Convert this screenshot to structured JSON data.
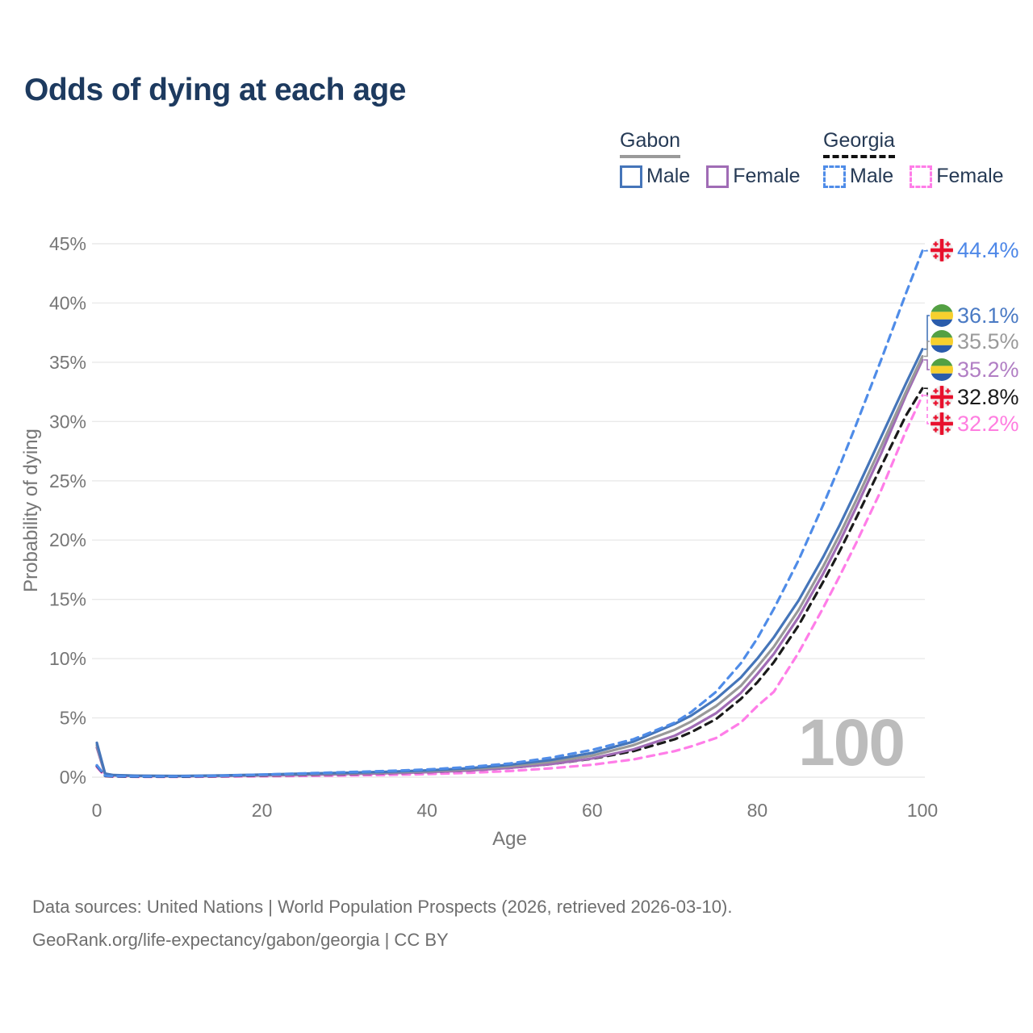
{
  "title": "Odds of dying at each age",
  "legend": {
    "gabon": {
      "title": "Gabon",
      "male": "Male",
      "female": "Female"
    },
    "georgia": {
      "title": "Georgia",
      "male": "Male",
      "female": "Female"
    }
  },
  "watermark": "100",
  "footer": {
    "line1": "Data sources: United Nations | World Population Prospects (2026, retrieved 2026-03-10).",
    "line2": "GeoRank.org/life-expectancy/gabon/georgia | CC BY"
  },
  "colors": {
    "title_text": "#1d3a5f",
    "legend_text": "#263a55",
    "axis_text": "#767676",
    "gridline": "#e9e9e9",
    "watermark": "#bcbcbc",
    "gabon_underline": "#9a9a9a",
    "georgia_underline": "#111111"
  },
  "chart_data": {
    "type": "line",
    "title": "Odds of dying at each age",
    "xlabel": "Age",
    "ylabel": "Probability of dying",
    "xlim": [
      0,
      100
    ],
    "ylim": [
      0,
      45
    ],
    "x_ticks": [
      0,
      20,
      40,
      60,
      80,
      100
    ],
    "y_ticks": [
      0,
      5,
      10,
      15,
      20,
      25,
      30,
      35,
      40,
      45
    ],
    "y_tick_suffix": "%",
    "grid": "horizontal",
    "legend_position": "top-right",
    "corner_age_counter": "100",
    "series": [
      {
        "name": "Georgia Male",
        "country": "Georgia",
        "sex": "Male",
        "style": "dashed",
        "color": "#4f8ce8",
        "label_color": "#4d87e8",
        "flag": "georgia",
        "end_label": "44.4%",
        "end_value": 44.4,
        "points": [
          [
            0,
            1.0
          ],
          [
            1,
            0.12
          ],
          [
            2,
            0.08
          ],
          [
            5,
            0.06
          ],
          [
            10,
            0.06
          ],
          [
            15,
            0.12
          ],
          [
            20,
            0.22
          ],
          [
            25,
            0.32
          ],
          [
            30,
            0.42
          ],
          [
            35,
            0.52
          ],
          [
            40,
            0.65
          ],
          [
            45,
            0.85
          ],
          [
            50,
            1.15
          ],
          [
            55,
            1.65
          ],
          [
            60,
            2.3
          ],
          [
            65,
            3.2
          ],
          [
            70,
            4.6
          ],
          [
            72,
            5.5
          ],
          [
            75,
            7.2
          ],
          [
            78,
            9.6
          ],
          [
            80,
            11.7
          ],
          [
            82,
            14.2
          ],
          [
            85,
            18.3
          ],
          [
            88,
            23.0
          ],
          [
            90,
            26.3
          ],
          [
            92,
            29.8
          ],
          [
            95,
            35.2
          ],
          [
            98,
            40.8
          ],
          [
            100,
            44.4
          ]
        ]
      },
      {
        "name": "Gabon Male",
        "country": "Gabon",
        "sex": "Male",
        "style": "solid",
        "color": "#4575b9",
        "label_color": "#4a7ac4",
        "flag": "gabon",
        "end_label": "36.1%",
        "end_value": 36.1,
        "points": [
          [
            0,
            2.9
          ],
          [
            1,
            0.3
          ],
          [
            2,
            0.18
          ],
          [
            5,
            0.12
          ],
          [
            10,
            0.1
          ],
          [
            15,
            0.14
          ],
          [
            20,
            0.22
          ],
          [
            25,
            0.3
          ],
          [
            30,
            0.37
          ],
          [
            35,
            0.45
          ],
          [
            40,
            0.57
          ],
          [
            45,
            0.75
          ],
          [
            50,
            1.05
          ],
          [
            55,
            1.45
          ],
          [
            60,
            2.05
          ],
          [
            65,
            3.0
          ],
          [
            70,
            4.5
          ],
          [
            72,
            5.2
          ],
          [
            75,
            6.6
          ],
          [
            78,
            8.4
          ],
          [
            80,
            10.0
          ],
          [
            82,
            11.8
          ],
          [
            85,
            14.9
          ],
          [
            88,
            18.6
          ],
          [
            90,
            21.3
          ],
          [
            92,
            24.2
          ],
          [
            95,
            28.7
          ],
          [
            98,
            33.2
          ],
          [
            100,
            36.1
          ]
        ]
      },
      {
        "name": "Gabon Both sexes",
        "country": "Gabon",
        "sex": "Both",
        "style": "solid",
        "color": "#999999",
        "label_color": "#9a9a9a",
        "flag": "gabon",
        "end_label": "35.5%",
        "end_value": 35.5,
        "points": [
          [
            0,
            2.7
          ],
          [
            1,
            0.27
          ],
          [
            2,
            0.16
          ],
          [
            5,
            0.11
          ],
          [
            10,
            0.09
          ],
          [
            15,
            0.12
          ],
          [
            20,
            0.19
          ],
          [
            25,
            0.26
          ],
          [
            30,
            0.32
          ],
          [
            35,
            0.4
          ],
          [
            40,
            0.5
          ],
          [
            45,
            0.66
          ],
          [
            50,
            0.92
          ],
          [
            55,
            1.28
          ],
          [
            60,
            1.82
          ],
          [
            65,
            2.7
          ],
          [
            70,
            4.0
          ],
          [
            72,
            4.7
          ],
          [
            75,
            6.0
          ],
          [
            78,
            7.7
          ],
          [
            80,
            9.3
          ],
          [
            82,
            11.0
          ],
          [
            85,
            14.1
          ],
          [
            88,
            17.8
          ],
          [
            90,
            20.5
          ],
          [
            92,
            23.4
          ],
          [
            95,
            27.9
          ],
          [
            98,
            32.5
          ],
          [
            100,
            35.5
          ]
        ]
      },
      {
        "name": "Gabon Female",
        "country": "Gabon",
        "sex": "Female",
        "style": "solid",
        "color": "#a06cb5",
        "label_color": "#b17ec4",
        "flag": "gabon",
        "end_label": "35.2%",
        "end_value": 35.2,
        "points": [
          [
            0,
            2.5
          ],
          [
            1,
            0.24
          ],
          [
            2,
            0.14
          ],
          [
            5,
            0.1
          ],
          [
            10,
            0.08
          ],
          [
            15,
            0.1
          ],
          [
            20,
            0.15
          ],
          [
            25,
            0.2
          ],
          [
            30,
            0.26
          ],
          [
            35,
            0.33
          ],
          [
            40,
            0.42
          ],
          [
            45,
            0.56
          ],
          [
            50,
            0.78
          ],
          [
            55,
            1.1
          ],
          [
            60,
            1.58
          ],
          [
            65,
            2.35
          ],
          [
            70,
            3.5
          ],
          [
            72,
            4.2
          ],
          [
            75,
            5.4
          ],
          [
            78,
            7.1
          ],
          [
            80,
            8.7
          ],
          [
            82,
            10.4
          ],
          [
            85,
            13.5
          ],
          [
            88,
            17.2
          ],
          [
            90,
            19.9
          ],
          [
            92,
            22.8
          ],
          [
            95,
            27.3
          ],
          [
            98,
            32.2
          ],
          [
            100,
            35.2
          ]
        ]
      },
      {
        "name": "Georgia Both sexes",
        "country": "Georgia",
        "sex": "Both",
        "style": "dashed",
        "color": "#1a1a1a",
        "label_color": "#1a1a1a",
        "flag": "georgia",
        "end_label": "32.8%",
        "end_value": 32.8,
        "points": [
          [
            0,
            0.95
          ],
          [
            1,
            0.1
          ],
          [
            2,
            0.06
          ],
          [
            5,
            0.04
          ],
          [
            10,
            0.04
          ],
          [
            15,
            0.08
          ],
          [
            20,
            0.13
          ],
          [
            25,
            0.18
          ],
          [
            30,
            0.24
          ],
          [
            35,
            0.32
          ],
          [
            40,
            0.42
          ],
          [
            45,
            0.56
          ],
          [
            50,
            0.78
          ],
          [
            55,
            1.1
          ],
          [
            60,
            1.55
          ],
          [
            65,
            2.2
          ],
          [
            70,
            3.2
          ],
          [
            72,
            3.8
          ],
          [
            75,
            4.9
          ],
          [
            78,
            6.6
          ],
          [
            80,
            8.0
          ],
          [
            82,
            9.7
          ],
          [
            85,
            12.8
          ],
          [
            88,
            16.5
          ],
          [
            90,
            19.1
          ],
          [
            92,
            21.9
          ],
          [
            95,
            26.2
          ],
          [
            98,
            30.5
          ],
          [
            100,
            32.8
          ]
        ]
      },
      {
        "name": "Georgia Female",
        "country": "Georgia",
        "sex": "Female",
        "style": "dashed",
        "color": "#ff7de8",
        "label_color": "#ff7de0",
        "flag": "georgia",
        "end_label": "32.2%",
        "end_value": 32.2,
        "points": [
          [
            0,
            0.85
          ],
          [
            1,
            0.08
          ],
          [
            2,
            0.05
          ],
          [
            5,
            0.03
          ],
          [
            10,
            0.03
          ],
          [
            15,
            0.05
          ],
          [
            20,
            0.08
          ],
          [
            25,
            0.11
          ],
          [
            30,
            0.14
          ],
          [
            35,
            0.19
          ],
          [
            40,
            0.26
          ],
          [
            45,
            0.36
          ],
          [
            50,
            0.52
          ],
          [
            55,
            0.75
          ],
          [
            60,
            1.05
          ],
          [
            65,
            1.5
          ],
          [
            70,
            2.2
          ],
          [
            72,
            2.6
          ],
          [
            75,
            3.3
          ],
          [
            78,
            4.6
          ],
          [
            80,
            6.0
          ],
          [
            82,
            7.2
          ],
          [
            85,
            10.5
          ],
          [
            88,
            14.3
          ],
          [
            90,
            17.0
          ],
          [
            92,
            19.8
          ],
          [
            95,
            24.2
          ],
          [
            98,
            29.2
          ],
          [
            100,
            32.2
          ]
        ]
      }
    ]
  }
}
